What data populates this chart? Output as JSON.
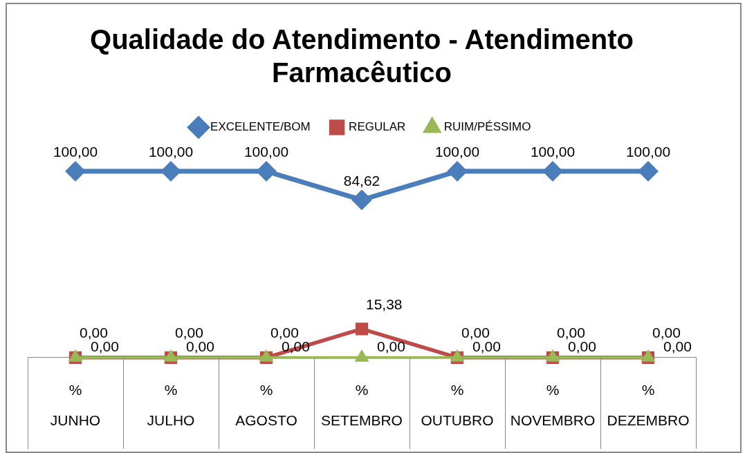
{
  "chart_data": {
    "type": "line",
    "title": "Qualidade do Atendimento - Atendimento Farmacêutico",
    "categories": [
      "%\nJUNHO",
      "%\nJULHO",
      "%\nAGOSTO",
      "%\nSETEMBRO",
      "%\nOUTUBRO",
      "%\nNOVEMBRO",
      "%\nDEZEMBRO"
    ],
    "series": [
      {
        "name": "EXCELENTE/BOM",
        "color": "#4a7ebb",
        "marker": "diamond",
        "values": [
          100,
          100,
          100,
          84.62,
          100,
          100,
          100
        ],
        "value_labels": [
          "100,00",
          "100,00",
          "100,00",
          "84,62",
          "100,00",
          "100,00",
          "100,00"
        ]
      },
      {
        "name": "REGULAR",
        "color": "#be4b48",
        "marker": "square",
        "values": [
          0,
          0,
          0,
          15.38,
          0,
          0,
          0
        ],
        "value_labels": [
          "0,00",
          "0,00",
          "0,00",
          "15,38",
          "0,00",
          "0,00",
          "0,00"
        ]
      },
      {
        "name": "RUIM/PÉSSIMO",
        "color": "#98b954",
        "marker": "triangle",
        "values": [
          0,
          0,
          0,
          0,
          0,
          0,
          0
        ],
        "value_labels": [
          "0,00",
          "0,00",
          "0,00",
          "0,00",
          "0,00",
          "0,00",
          "0,00"
        ]
      }
    ],
    "legend": "top",
    "grid": false,
    "tick_labels": "x",
    "line_style": "solid"
  }
}
